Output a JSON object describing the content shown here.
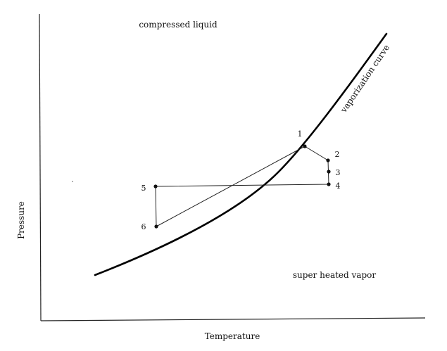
{
  "axes": {
    "x_label": "Temperature",
    "y_label": "Pressure"
  },
  "regions": {
    "liquid": "compressed liquid",
    "vapor": "super heated vapor"
  },
  "curve_label": "vaporization curve",
  "points": [
    "1",
    "2",
    "3",
    "4",
    "5",
    "6"
  ],
  "colors": {
    "ink": "#111111",
    "background": "#ffffff"
  }
}
